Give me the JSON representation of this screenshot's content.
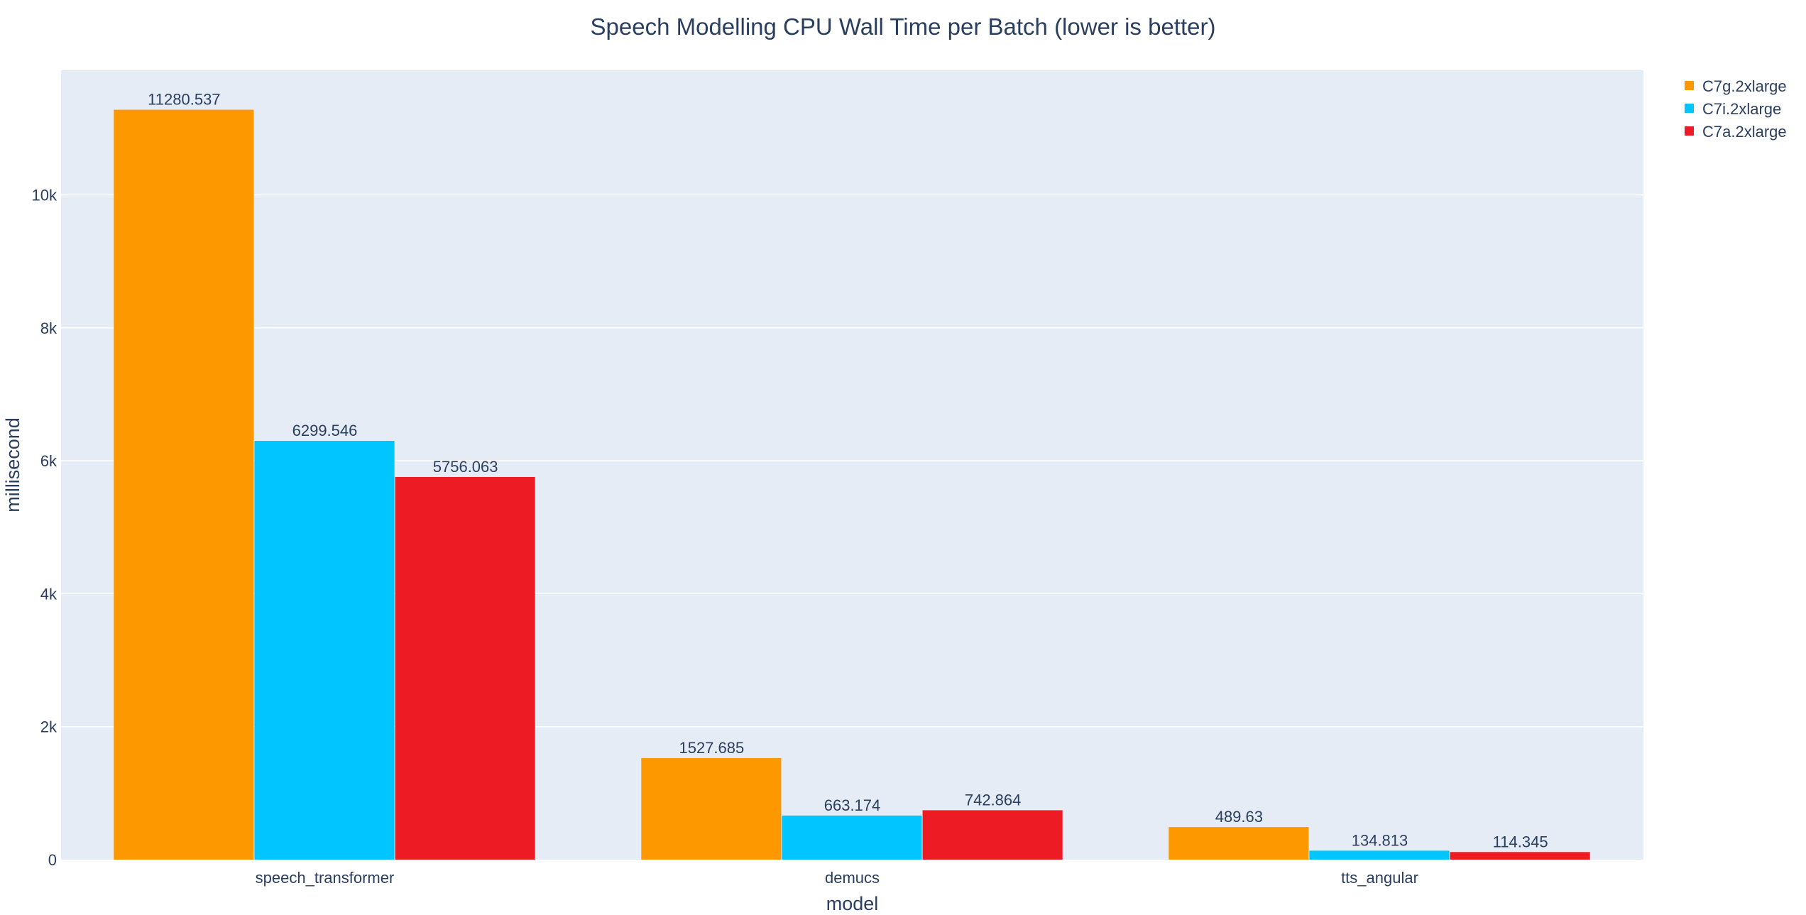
{
  "chart_data": {
    "type": "bar",
    "title": "Speech Modelling CPU Wall Time per Batch (lower is better)",
    "xlabel": "model",
    "ylabel": "millisecond",
    "categories": [
      "speech_transformer",
      "demucs",
      "tts_angular"
    ],
    "series": [
      {
        "name": "C7g.2xlarge",
        "color": "#fd9800",
        "values": [
          11280.537,
          1527.685,
          489.63
        ]
      },
      {
        "name": "C7i.2xlarge",
        "color": "#00c5ff",
        "values": [
          6299.546,
          663.174,
          134.813
        ]
      },
      {
        "name": "C7a.2xlarge",
        "color": "#ed1c24",
        "values": [
          5756.063,
          742.864,
          114.345
        ]
      }
    ],
    "ylim": [
      0,
      11874
    ],
    "yticks": [
      0,
      2000,
      4000,
      6000,
      8000,
      10000
    ],
    "ytick_labels": [
      "0",
      "2k",
      "4k",
      "6k",
      "8k",
      "10k"
    ],
    "grid": true,
    "legend_position": "top-right",
    "plot_background": "#e5ecf6"
  }
}
